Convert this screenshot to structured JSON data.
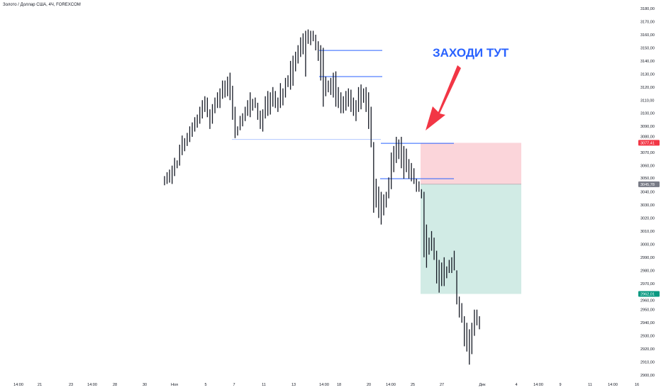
{
  "header": {
    "title": "Золото / Доллар США, 4Ч, FOREXCOM"
  },
  "annotation": {
    "text": "ЗАХОДИ ТУТ",
    "color": "#2962ff",
    "arrow_color": "#f23645"
  },
  "colors": {
    "bars": "#131722",
    "level_line": "#2962ff",
    "stop_zone": "#fbd5da",
    "target_zone": "#d1ebe5",
    "stop_label": "#f23645",
    "entry_label": "#787b86",
    "target_label": "#089981"
  },
  "chart_data": {
    "type": "ohlc",
    "ylim": [
      2900,
      3180
    ],
    "y_ticks": [
      3180,
      3170,
      3160,
      3150,
      3140,
      3130,
      3120,
      3110,
      3100,
      3090,
      3080,
      3070,
      3060,
      3050,
      3040,
      3030,
      3020,
      3010,
      3000,
      2990,
      2980,
      2970,
      2960,
      2950,
      2940,
      2930,
      2920,
      2910,
      2900
    ],
    "x_tick_labels": [
      "14:00",
      "21",
      "23",
      "14:00",
      "28",
      "30",
      "Ноя",
      "5",
      "7",
      "11",
      "13",
      "14:00",
      "18",
      "20",
      "14:00",
      "25",
      "27",
      "Дек",
      "4",
      "14:00",
      "9",
      "11",
      "14:00",
      "16"
    ],
    "bars_high_low": [
      [
        3052,
        3045
      ],
      [
        3055,
        3046
      ],
      [
        3057,
        3047
      ],
      [
        3060,
        3046
      ],
      [
        3066,
        3052
      ],
      [
        3064,
        3058
      ],
      [
        3076,
        3060
      ],
      [
        3083,
        3068
      ],
      [
        3081,
        3071
      ],
      [
        3085,
        3075
      ],
      [
        3090,
        3078
      ],
      [
        3093,
        3082
      ],
      [
        3097,
        3086
      ],
      [
        3099,
        3089
      ],
      [
        3105,
        3092
      ],
      [
        3110,
        3096
      ],
      [
        3113,
        3101
      ],
      [
        3112,
        3097
      ],
      [
        3103,
        3088
      ],
      [
        3107,
        3092
      ],
      [
        3112,
        3100
      ],
      [
        3116,
        3104
      ],
      [
        3119,
        3104
      ],
      [
        3125,
        3111
      ],
      [
        3125,
        3112
      ],
      [
        3128,
        3113
      ],
      [
        3131,
        3110
      ],
      [
        3121,
        3095
      ],
      [
        3105,
        3081
      ],
      [
        3090,
        3083
      ],
      [
        3098,
        3087
      ],
      [
        3100,
        3090
      ],
      [
        3105,
        3094
      ],
      [
        3110,
        3098
      ],
      [
        3116,
        3097
      ],
      [
        3111,
        3102
      ],
      [
        3112,
        3104
      ],
      [
        3108,
        3095
      ],
      [
        3102,
        3088
      ],
      [
        3103,
        3086
      ],
      [
        3113,
        3096
      ],
      [
        3117,
        3098
      ],
      [
        3116,
        3099
      ],
      [
        3120,
        3105
      ],
      [
        3117,
        3104
      ],
      [
        3112,
        3101
      ],
      [
        3123,
        3104
      ],
      [
        3119,
        3106
      ],
      [
        3127,
        3112
      ],
      [
        3129,
        3120
      ],
      [
        3140,
        3118
      ],
      [
        3144,
        3121
      ],
      [
        3147,
        3132
      ],
      [
        3152,
        3138
      ],
      [
        3158,
        3143
      ],
      [
        3161,
        3145
      ],
      [
        3163,
        3128
      ],
      [
        3164,
        3153
      ],
      [
        3163,
        3152
      ],
      [
        3163,
        3155
      ],
      [
        3160,
        3148
      ],
      [
        3155,
        3140
      ],
      [
        3152,
        3125
      ],
      [
        3150,
        3105
      ],
      [
        3128,
        3113
      ],
      [
        3125,
        3116
      ],
      [
        3127,
        3114
      ],
      [
        3131,
        3112
      ],
      [
        3132,
        3105
      ],
      [
        3120,
        3104
      ],
      [
        3116,
        3100
      ],
      [
        3113,
        3100
      ],
      [
        3117,
        3102
      ],
      [
        3119,
        3105
      ],
      [
        3118,
        3101
      ],
      [
        3112,
        3098
      ],
      [
        3110,
        3094
      ],
      [
        3120,
        3101
      ],
      [
        3122,
        3103
      ],
      [
        3119,
        3108
      ],
      [
        3120,
        3101
      ],
      [
        3116,
        3088
      ],
      [
        3105,
        3074
      ],
      [
        3078,
        3024
      ],
      [
        3050,
        3028
      ],
      [
        3044,
        3020
      ],
      [
        3040,
        3015
      ],
      [
        3038,
        3022
      ],
      [
        3040,
        3028
      ],
      [
        3051,
        3035
      ],
      [
        3070,
        3042
      ],
      [
        3075,
        3055
      ],
      [
        3082,
        3062
      ],
      [
        3080,
        3065
      ],
      [
        3082,
        3058
      ],
      [
        3075,
        3050
      ],
      [
        3073,
        3055
      ],
      [
        3065,
        3050
      ],
      [
        3062,
        3048
      ],
      [
        3058,
        3046
      ],
      [
        3050,
        3040
      ],
      [
        3048,
        3040
      ],
      [
        3042,
        3035
      ],
      [
        3040,
        2990
      ],
      [
        3015,
        2982
      ],
      [
        3005,
        2992
      ],
      [
        3010,
        2995
      ],
      [
        3005,
        2988
      ],
      [
        2995,
        2970
      ],
      [
        2988,
        2963
      ],
      [
        2986,
        2968
      ],
      [
        2990,
        2968
      ],
      [
        2983,
        2974
      ],
      [
        2988,
        2978
      ],
      [
        2990,
        2978
      ],
      [
        2995,
        2980
      ],
      [
        2980,
        2954
      ],
      [
        2960,
        2944
      ],
      [
        2955,
        2940
      ],
      [
        2945,
        2922
      ],
      [
        2940,
        2918
      ],
      [
        2935,
        2908
      ],
      [
        2940,
        2916
      ],
      [
        2950,
        2930
      ],
      [
        2950,
        2938
      ],
      [
        2945,
        2935
      ]
    ],
    "levels": [
      3148,
      3128,
      3080,
      3077,
      3050
    ],
    "position": {
      "stop": 3077.41,
      "entry": 3045.78,
      "target": 2962.01
    },
    "price_labels": {
      "stop": "3077,41",
      "entry": "3045,78",
      "target": "2962,01"
    }
  }
}
